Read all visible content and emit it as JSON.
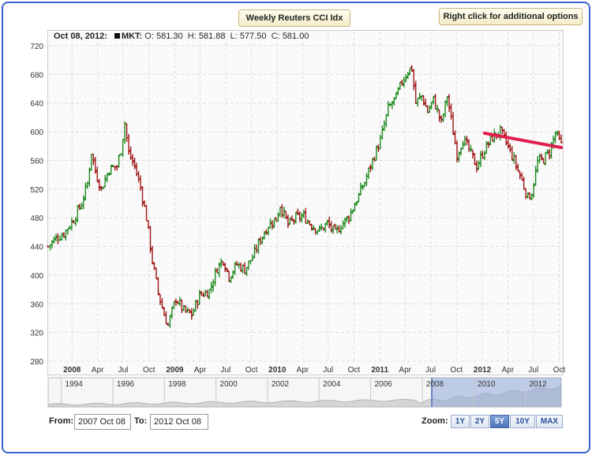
{
  "header": {
    "title_button": "Weekly Reuters CCI Idx",
    "options_button": "Right click for additional options"
  },
  "ohlc_readout": {
    "date": "Oct 08, 2012:",
    "symbol": "MKT:",
    "open_label": "O:",
    "open": "581.30",
    "high_label": "H:",
    "high": "581.88",
    "low_label": "L:",
    "low": "577.50",
    "close_label": "C:",
    "close": "581.00"
  },
  "colors": {
    "up": "#1f8a1f",
    "down": "#a01515",
    "trend_line": "#e01e4e",
    "grid": "#dddddd",
    "navigator_fill": "#8fa8d8"
  },
  "chart_data": {
    "type": "ohlc",
    "title": "",
    "xlabel": "",
    "ylabel": "",
    "ylim": [
      280,
      720
    ],
    "y_ticks": [
      280,
      320,
      360,
      400,
      440,
      480,
      520,
      560,
      600,
      640,
      680,
      720
    ],
    "x_range": [
      "2007-10-08",
      "2012-10-08"
    ],
    "x_ticks": [
      {
        "label": "2008",
        "date": "2008-01-01"
      },
      {
        "label": "Apr",
        "date": "2008-04-01"
      },
      {
        "label": "Jul",
        "date": "2008-07-01"
      },
      {
        "label": "Oct",
        "date": "2008-10-01"
      },
      {
        "label": "2009",
        "date": "2009-01-01"
      },
      {
        "label": "Apr",
        "date": "2009-04-01"
      },
      {
        "label": "Jul",
        "date": "2009-07-01"
      },
      {
        "label": "Oct",
        "date": "2009-10-01"
      },
      {
        "label": "2010",
        "date": "2010-01-01"
      },
      {
        "label": "Apr",
        "date": "2010-04-01"
      },
      {
        "label": "Jul",
        "date": "2010-07-01"
      },
      {
        "label": "Oct",
        "date": "2010-10-01"
      },
      {
        "label": "2011",
        "date": "2011-01-01"
      },
      {
        "label": "Apr",
        "date": "2011-04-01"
      },
      {
        "label": "Jul",
        "date": "2011-07-01"
      },
      {
        "label": "Oct",
        "date": "2011-10-01"
      },
      {
        "label": "2012",
        "date": "2012-01-01"
      },
      {
        "label": "Apr",
        "date": "2012-04-01"
      },
      {
        "label": "Jul",
        "date": "2012-07-01"
      },
      {
        "label": "Oct",
        "date": "2012-10-01"
      }
    ],
    "grid": true,
    "close_series": [
      {
        "date": "2007-10-08",
        "close": 440
      },
      {
        "date": "2007-11-05",
        "close": 452
      },
      {
        "date": "2007-12-03",
        "close": 458
      },
      {
        "date": "2008-01-07",
        "close": 478
      },
      {
        "date": "2008-02-04",
        "close": 500
      },
      {
        "date": "2008-02-25",
        "close": 528
      },
      {
        "date": "2008-03-10",
        "close": 572
      },
      {
        "date": "2008-03-24",
        "close": 545
      },
      {
        "date": "2008-04-14",
        "close": 520
      },
      {
        "date": "2008-05-12",
        "close": 548
      },
      {
        "date": "2008-06-09",
        "close": 552
      },
      {
        "date": "2008-06-23",
        "close": 575
      },
      {
        "date": "2008-07-07",
        "close": 612
      },
      {
        "date": "2008-07-21",
        "close": 570
      },
      {
        "date": "2008-08-11",
        "close": 552
      },
      {
        "date": "2008-09-01",
        "close": 522
      },
      {
        "date": "2008-09-22",
        "close": 480
      },
      {
        "date": "2008-10-13",
        "close": 420
      },
      {
        "date": "2008-11-03",
        "close": 375
      },
      {
        "date": "2008-11-24",
        "close": 345
      },
      {
        "date": "2008-12-08",
        "close": 330
      },
      {
        "date": "2009-01-05",
        "close": 368
      },
      {
        "date": "2009-02-02",
        "close": 350
      },
      {
        "date": "2009-03-02",
        "close": 345
      },
      {
        "date": "2009-03-30",
        "close": 372
      },
      {
        "date": "2009-05-04",
        "close": 378
      },
      {
        "date": "2009-06-01",
        "close": 410
      },
      {
        "date": "2009-06-22",
        "close": 422
      },
      {
        "date": "2009-07-13",
        "close": 398
      },
      {
        "date": "2009-08-10",
        "close": 415
      },
      {
        "date": "2009-09-07",
        "close": 408
      },
      {
        "date": "2009-10-05",
        "close": 425
      },
      {
        "date": "2009-11-02",
        "close": 450
      },
      {
        "date": "2009-11-30",
        "close": 470
      },
      {
        "date": "2009-12-28",
        "close": 478
      },
      {
        "date": "2010-01-11",
        "close": 498
      },
      {
        "date": "2010-02-08",
        "close": 470
      },
      {
        "date": "2010-03-08",
        "close": 480
      },
      {
        "date": "2010-04-05",
        "close": 482
      },
      {
        "date": "2010-05-03",
        "close": 470
      },
      {
        "date": "2010-05-31",
        "close": 462
      },
      {
        "date": "2010-06-28",
        "close": 472
      },
      {
        "date": "2010-07-26",
        "close": 458
      },
      {
        "date": "2010-08-16",
        "close": 470
      },
      {
        "date": "2010-09-13",
        "close": 482
      },
      {
        "date": "2010-10-11",
        "close": 505
      },
      {
        "date": "2010-11-08",
        "close": 530
      },
      {
        "date": "2010-12-06",
        "close": 560
      },
      {
        "date": "2011-01-03",
        "close": 588
      },
      {
        "date": "2011-01-31",
        "close": 632
      },
      {
        "date": "2011-02-28",
        "close": 648
      },
      {
        "date": "2011-03-21",
        "close": 670
      },
      {
        "date": "2011-04-11",
        "close": 685
      },
      {
        "date": "2011-04-25",
        "close": 688
      },
      {
        "date": "2011-05-09",
        "close": 640
      },
      {
        "date": "2011-05-30",
        "close": 650
      },
      {
        "date": "2011-06-20",
        "close": 628
      },
      {
        "date": "2011-07-11",
        "close": 645
      },
      {
        "date": "2011-08-08",
        "close": 612
      },
      {
        "date": "2011-08-29",
        "close": 650
      },
      {
        "date": "2011-09-19",
        "close": 600
      },
      {
        "date": "2011-10-03",
        "close": 568
      },
      {
        "date": "2011-10-24",
        "close": 590
      },
      {
        "date": "2011-11-14",
        "close": 575
      },
      {
        "date": "2011-12-12",
        "close": 552
      },
      {
        "date": "2012-01-09",
        "close": 575
      },
      {
        "date": "2012-02-06",
        "close": 592
      },
      {
        "date": "2012-03-05",
        "close": 600
      },
      {
        "date": "2012-03-26",
        "close": 585
      },
      {
        "date": "2012-04-23",
        "close": 560
      },
      {
        "date": "2012-05-21",
        "close": 532
      },
      {
        "date": "2012-06-11",
        "close": 508
      },
      {
        "date": "2012-06-25",
        "close": 515
      },
      {
        "date": "2012-07-16",
        "close": 558
      },
      {
        "date": "2012-08-06",
        "close": 562
      },
      {
        "date": "2012-08-27",
        "close": 572
      },
      {
        "date": "2012-09-17",
        "close": 598
      },
      {
        "date": "2012-10-08",
        "close": 581
      }
    ],
    "trend_line": {
      "start": {
        "date": "2012-01-09",
        "value": 598
      },
      "end": {
        "date": "2012-10-08",
        "value": 578
      }
    }
  },
  "navigator": {
    "year_labels": [
      "1994",
      "1996",
      "1998",
      "2000",
      "2002",
      "2004",
      "2006",
      "2008",
      "2010",
      "2012"
    ]
  },
  "range": {
    "from_label": "From:",
    "from_value": "2007 Oct 08",
    "to_label": "To:",
    "to_value": "2012 Oct 08"
  },
  "zoom": {
    "label": "Zoom:",
    "buttons": [
      "1Y",
      "2Y",
      "5Y",
      "10Y",
      "MAX"
    ],
    "active": "5Y"
  }
}
